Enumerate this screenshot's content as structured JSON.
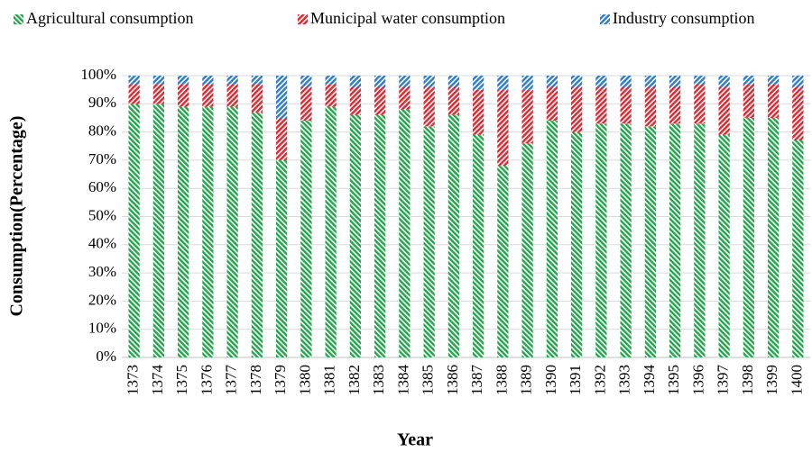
{
  "chart_data": {
    "type": "stacked_bar",
    "x_label": "Year",
    "y_label": "Consumption(Percentage)",
    "categories": [
      "1373",
      "1374",
      "1375",
      "1376",
      "1377",
      "1378",
      "1379",
      "1380",
      "1381",
      "1382",
      "1383",
      "1384",
      "1385",
      "1386",
      "1387",
      "1388",
      "1389",
      "1390",
      "1391",
      "1392",
      "1393",
      "1394",
      "1395",
      "1396",
      "1397",
      "1398",
      "1399",
      "1400"
    ],
    "series": [
      {
        "name": "Agricultural consumption",
        "color": "#22a64b",
        "values": [
          90,
          90,
          89,
          89,
          89,
          87,
          70,
          84,
          89,
          86,
          86,
          88,
          82,
          86,
          79,
          68,
          76,
          84,
          80,
          83,
          83,
          82,
          83,
          83,
          79,
          85,
          85,
          77
        ]
      },
      {
        "name": "Municipal water consumption",
        "color": "#e8232b",
        "values": [
          7,
          7,
          8,
          8,
          8,
          10,
          15,
          12,
          8,
          10,
          10,
          8,
          14,
          10,
          16,
          27,
          19,
          12,
          16,
          13,
          13,
          14,
          13,
          14,
          17,
          12,
          12,
          19
        ]
      },
      {
        "name": "Industry consumption",
        "color": "#2a7bd1",
        "values": [
          3,
          3,
          3,
          3,
          3,
          3,
          15,
          4,
          3,
          4,
          4,
          4,
          4,
          4,
          5,
          5,
          5,
          4,
          4,
          4,
          4,
          4,
          4,
          3,
          4,
          3,
          3,
          4
        ]
      }
    ],
    "ylim": [
      0,
      100
    ],
    "yticks": [
      {
        "value": 0,
        "label": "0%"
      },
      {
        "value": 10,
        "label": "10%"
      },
      {
        "value": 20,
        "label": "20%"
      },
      {
        "value": 30,
        "label": "30%"
      },
      {
        "value": 40,
        "label": "40%"
      },
      {
        "value": 50,
        "label": "50%"
      },
      {
        "value": 60,
        "label": "60%"
      },
      {
        "value": 70,
        "label": "70%"
      },
      {
        "value": 80,
        "label": "80%"
      },
      {
        "value": 90,
        "label": "90%"
      },
      {
        "value": 100,
        "label": "100%"
      }
    ],
    "grid": true,
    "legend": "top"
  }
}
